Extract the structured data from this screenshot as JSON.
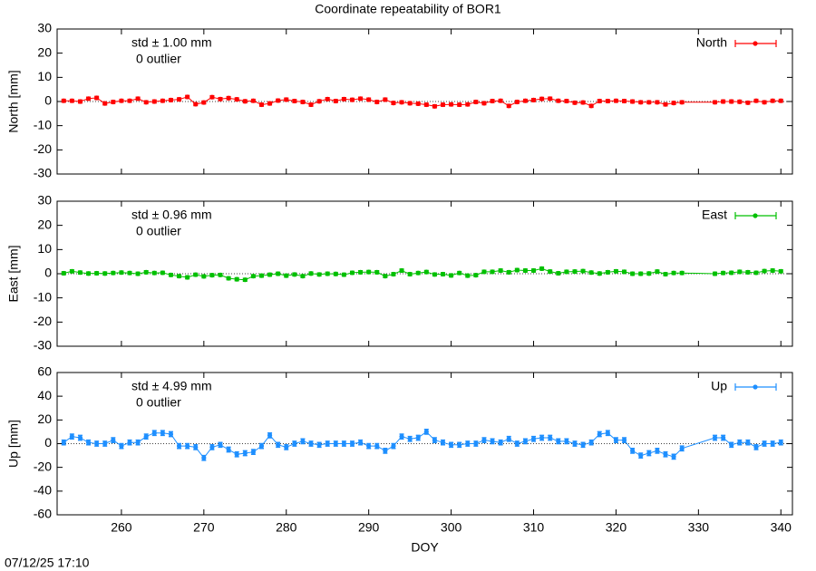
{
  "title": "Coordinate repeatability of BOR1",
  "timestamp": "07/12/25 17:10",
  "chart_data": [
    {
      "type": "line",
      "ylabel": "North [mm]",
      "annotations": [
        "std ± 1.00 mm",
        "0 outlier"
      ],
      "xlim": [
        252.2,
        341.4
      ],
      "xticks": [
        260,
        270,
        280,
        290,
        300,
        310,
        320,
        330,
        340
      ],
      "xtick_labels": false,
      "ylim": [
        -30,
        30
      ],
      "yticks": [
        -30,
        -20,
        -10,
        0,
        10,
        20,
        30
      ],
      "zero_line": true,
      "legend": "upper right",
      "x": [
        253,
        254,
        255,
        256,
        257,
        258,
        259,
        260,
        261,
        262,
        263,
        264,
        265,
        266,
        267,
        268,
        269,
        270,
        271,
        272,
        273,
        274,
        275,
        276,
        277,
        278,
        279,
        280,
        281,
        282,
        283,
        284,
        285,
        286,
        287,
        288,
        289,
        290,
        291,
        292,
        293,
        294,
        295,
        296,
        297,
        298,
        299,
        300,
        301,
        302,
        303,
        304,
        305,
        306,
        307,
        308,
        309,
        310,
        311,
        312,
        313,
        314,
        315,
        316,
        317,
        318,
        319,
        320,
        321,
        322,
        323,
        324,
        325,
        326,
        327,
        328,
        332,
        333,
        334,
        335,
        336,
        337,
        338,
        339,
        340
      ],
      "series": [
        {
          "name": "North",
          "color": "#ff0000",
          "error": 0.6,
          "values": [
            0.3,
            0.3,
            0,
            1.2,
            1.5,
            -0.8,
            -0.2,
            0.3,
            0.3,
            1.2,
            -0.3,
            0,
            0.3,
            0.6,
            0.9,
            1.9,
            -1.1,
            -0.4,
            1.8,
            1,
            1.4,
            0.9,
            0.1,
            0.3,
            -1.3,
            -0.8,
            0.4,
            0.8,
            0.2,
            -0.2,
            -1.3,
            0.1,
            1,
            0.2,
            1,
            0.7,
            1.2,
            0.8,
            -0.2,
            0.8,
            -0.6,
            -0.3,
            -0.7,
            -0.9,
            -1.3,
            -2,
            -1.3,
            -1.2,
            -1.3,
            -1.2,
            -0.2,
            -0.7,
            0.2,
            0.3,
            -1.8,
            -0.2,
            0.3,
            0.6,
            1.1,
            1.2,
            0.3,
            0.2,
            -0.5,
            -0.4,
            -1.8,
            0.2,
            0.2,
            0.3,
            0.2,
            0,
            -0.3,
            -0.3,
            -0.3,
            -1.2,
            -0.6,
            -0.3,
            -0.3,
            0,
            0,
            -0.1,
            -0.5,
            0.3,
            -0.3,
            0.3,
            0.3
          ]
        }
      ]
    },
    {
      "type": "line",
      "ylabel": "East [mm]",
      "annotations": [
        "std ± 0.96 mm",
        "0 outlier"
      ],
      "xlim": [
        252.2,
        341.4
      ],
      "xticks": [
        260,
        270,
        280,
        290,
        300,
        310,
        320,
        330,
        340
      ],
      "xtick_labels": false,
      "ylim": [
        -30,
        30
      ],
      "yticks": [
        -30,
        -20,
        -10,
        0,
        10,
        20,
        30
      ],
      "zero_line": true,
      "legend": "upper right",
      "x": [
        253,
        254,
        255,
        256,
        257,
        258,
        259,
        260,
        261,
        262,
        263,
        264,
        265,
        266,
        267,
        268,
        269,
        270,
        271,
        272,
        273,
        274,
        275,
        276,
        277,
        278,
        279,
        280,
        281,
        282,
        283,
        284,
        285,
        286,
        287,
        288,
        289,
        290,
        291,
        292,
        293,
        294,
        295,
        296,
        297,
        298,
        299,
        300,
        301,
        302,
        303,
        304,
        305,
        306,
        307,
        308,
        309,
        310,
        311,
        312,
        313,
        314,
        315,
        316,
        317,
        318,
        319,
        320,
        321,
        322,
        323,
        324,
        325,
        326,
        327,
        328,
        332,
        333,
        334,
        335,
        336,
        337,
        338,
        339,
        340
      ],
      "series": [
        {
          "name": "East",
          "color": "#00c000",
          "error": 0.6,
          "values": [
            0.2,
            1,
            0.5,
            0.1,
            0.2,
            0.1,
            0.3,
            0.5,
            0.3,
            0,
            0.6,
            0.3,
            0.4,
            -0.5,
            -1,
            -1.5,
            -0.4,
            -1.1,
            -0.6,
            -0.5,
            -1.9,
            -2.3,
            -2.5,
            -1,
            -0.8,
            -0.4,
            0,
            -0.8,
            -0.3,
            -1,
            0.1,
            -0.3,
            0,
            -0.1,
            -0.4,
            0.4,
            0.6,
            0.7,
            0.6,
            -1,
            -0.2,
            1.3,
            -0.2,
            0.3,
            0.7,
            -0.3,
            -0.2,
            -0.7,
            0.3,
            -0.8,
            -0.6,
            0.8,
            0.8,
            1.3,
            0.6,
            1.5,
            1.3,
            1.3,
            2.1,
            0.9,
            0.2,
            0.8,
            0.9,
            1.1,
            0.5,
            0.1,
            0.6,
            1,
            0.8,
            0,
            0,
            0.1,
            0.9,
            -0.2,
            0.3,
            0.3,
            0,
            0.3,
            0.4,
            0.8,
            0.6,
            0.4,
            1.1,
            1.3,
            1
          ]
        }
      ]
    },
    {
      "type": "line",
      "ylabel": "Up [mm]",
      "xlabel": "DOY",
      "annotations": [
        "std ± 4.99 mm",
        "0 outlier"
      ],
      "xlim": [
        252.2,
        341.4
      ],
      "xticks": [
        260,
        270,
        280,
        290,
        300,
        310,
        320,
        330,
        340
      ],
      "xtick_labels": true,
      "ylim": [
        -60,
        60
      ],
      "yticks": [
        -60,
        -40,
        -20,
        0,
        20,
        40,
        60
      ],
      "zero_line": true,
      "legend": "upper right",
      "x": [
        253,
        254,
        255,
        256,
        257,
        258,
        259,
        260,
        261,
        262,
        263,
        264,
        265,
        266,
        267,
        268,
        269,
        270,
        271,
        272,
        273,
        274,
        275,
        276,
        277,
        278,
        279,
        280,
        281,
        282,
        283,
        284,
        285,
        286,
        287,
        288,
        289,
        290,
        291,
        292,
        293,
        294,
        295,
        296,
        297,
        298,
        299,
        300,
        301,
        302,
        303,
        304,
        305,
        306,
        307,
        308,
        309,
        310,
        311,
        312,
        313,
        314,
        315,
        316,
        317,
        318,
        319,
        320,
        321,
        322,
        323,
        324,
        325,
        326,
        327,
        328,
        332,
        333,
        334,
        335,
        336,
        337,
        338,
        339,
        340
      ],
      "series": [
        {
          "name": "Up",
          "color": "#1e8fff",
          "error": 2,
          "values": [
            1,
            6,
            5,
            1,
            0,
            0,
            3,
            -2,
            1,
            1,
            6,
            9,
            9,
            8,
            -2,
            -2,
            -3,
            -12,
            -3,
            -1,
            -5,
            -9,
            -8,
            -7,
            -2,
            7,
            -1,
            -3,
            0,
            2,
            0,
            -1,
            0,
            0,
            0,
            0,
            1,
            -2,
            -2,
            -6,
            -2,
            6,
            4,
            5,
            10,
            3,
            1,
            -1,
            -1,
            0,
            0,
            3,
            2,
            1,
            4,
            0,
            2,
            4,
            5,
            5,
            2,
            2,
            0,
            -1,
            1,
            8,
            9,
            3,
            3,
            -6,
            -10,
            -8,
            -6,
            -9,
            -11,
            -4,
            5,
            5,
            -1,
            1,
            1,
            -3,
            0,
            0,
            1
          ]
        }
      ]
    }
  ]
}
